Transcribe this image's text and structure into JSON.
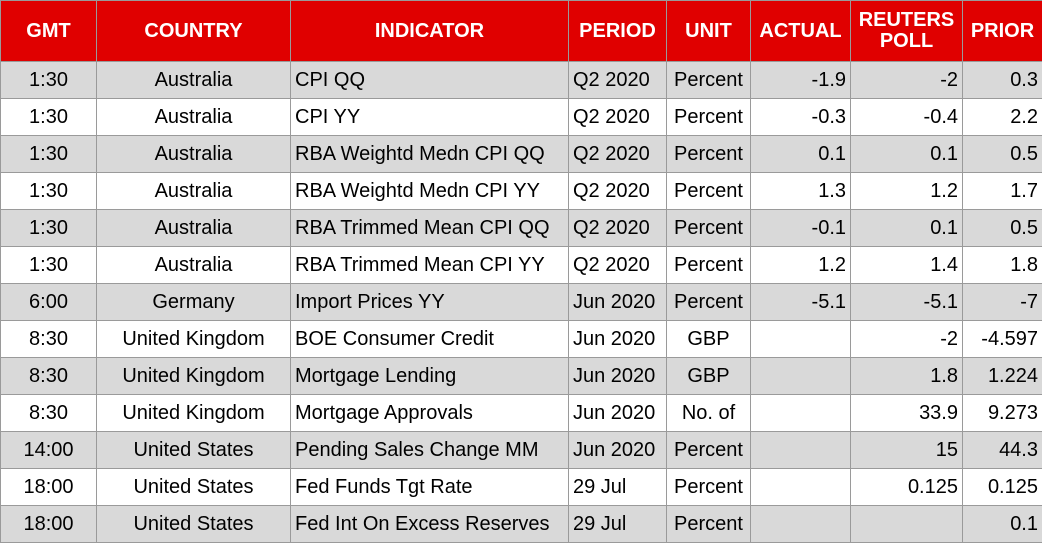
{
  "table": {
    "columns": [
      "GMT",
      "COUNTRY",
      "INDICATOR",
      "PERIOD",
      "UNIT",
      "ACTUAL",
      "REUTERS POLL",
      "PRIOR"
    ],
    "rows": [
      [
        "1:30",
        "Australia",
        "CPI QQ",
        "Q2 2020",
        "Percent",
        "-1.9",
        "-2",
        "0.3"
      ],
      [
        "1:30",
        "Australia",
        "CPI YY",
        "Q2 2020",
        "Percent",
        "-0.3",
        "-0.4",
        "2.2"
      ],
      [
        "1:30",
        "Australia",
        "RBA Weightd Medn CPI QQ",
        "Q2 2020",
        "Percent",
        "0.1",
        "0.1",
        "0.5"
      ],
      [
        "1:30",
        "Australia",
        "RBA Weightd Medn CPI YY",
        "Q2 2020",
        "Percent",
        "1.3",
        "1.2",
        "1.7"
      ],
      [
        "1:30",
        "Australia",
        "RBA Trimmed Mean CPI QQ",
        "Q2 2020",
        "Percent",
        "-0.1",
        "0.1",
        "0.5"
      ],
      [
        "1:30",
        "Australia",
        "RBA Trimmed Mean CPI YY",
        "Q2 2020",
        "Percent",
        "1.2",
        "1.4",
        "1.8"
      ],
      [
        "6:00",
        "Germany",
        "Import Prices YY",
        "Jun 2020",
        "Percent",
        "-5.1",
        "-5.1",
        "-7"
      ],
      [
        "8:30",
        "United Kingdom",
        "BOE Consumer Credit",
        "Jun 2020",
        "GBP",
        null,
        "-2",
        "-4.597"
      ],
      [
        "8:30",
        "United Kingdom",
        "Mortgage Lending",
        "Jun 2020",
        "GBP",
        null,
        "1.8",
        "1.224"
      ],
      [
        "8:30",
        "United Kingdom",
        "Mortgage Approvals",
        "Jun 2020",
        "No. of",
        null,
        "33.9",
        "9.273"
      ],
      [
        "14:00",
        "United States",
        "Pending Sales Change MM",
        "Jun 2020",
        "Percent",
        null,
        "15",
        "44.3"
      ],
      [
        "18:00",
        "United States",
        "Fed Funds Tgt Rate",
        "29 Jul",
        "Percent",
        null,
        "0.125",
        "0.125"
      ],
      [
        "18:00",
        "United States",
        "Fed Int On Excess Reserves",
        "29 Jul",
        "Percent",
        null,
        null,
        "0.1"
      ]
    ]
  }
}
